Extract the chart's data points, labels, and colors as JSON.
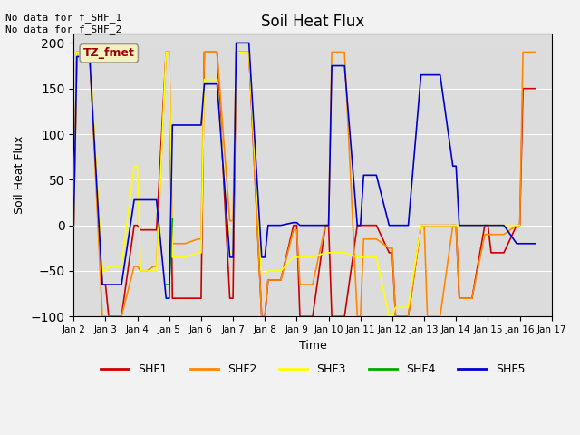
{
  "title": "Soil Heat Flux",
  "xlabel": "Time",
  "ylabel": "Soil Heat Flux",
  "annotation_text": "No data for f_SHF_1\nNo data for f_SHF_2",
  "legend_label_text": "TZ_fmet",
  "ylim": [
    -100,
    210
  ],
  "yticks": [
    -100,
    -50,
    0,
    50,
    100,
    150,
    200
  ],
  "fig_bg": "#f2f2f2",
  "ax_bg": "#dcdcdc",
  "series": {
    "SHF1": {
      "color": "#cc0000",
      "x": [
        2.0,
        2.1,
        2.5,
        2.9,
        3.0,
        3.1,
        3.5,
        3.9,
        4.0,
        4.1,
        4.3,
        4.5,
        4.6,
        4.9,
        5.0,
        5.1,
        5.5,
        5.9,
        6.0,
        6.1,
        6.5,
        6.9,
        7.0,
        7.1,
        7.5,
        7.9,
        8.0,
        8.1,
        8.5,
        8.9,
        9.0,
        9.1,
        9.5,
        9.9,
        10.0,
        10.1,
        10.5,
        10.9,
        11.0,
        11.1,
        11.5,
        11.9,
        12.0,
        12.1,
        12.5,
        12.9,
        13.0,
        13.1,
        13.5,
        13.9,
        14.0,
        14.1,
        14.5,
        14.9,
        15.0,
        15.1,
        15.5,
        15.9,
        16.0,
        16.1,
        16.5
      ],
      "y": [
        0,
        190,
        190,
        -65,
        -65,
        -100,
        -100,
        0,
        0,
        -5,
        -5,
        -5,
        -5,
        190,
        190,
        -80,
        -80,
        -80,
        -80,
        190,
        190,
        -80,
        -80,
        190,
        190,
        -100,
        -100,
        -60,
        -60,
        0,
        0,
        -100,
        -100,
        0,
        0,
        -100,
        -100,
        0,
        0,
        0,
        0,
        -30,
        -30,
        -100,
        -100,
        0,
        0,
        0,
        0,
        0,
        0,
        -80,
        -80,
        0,
        0,
        -30,
        -30,
        0,
        0,
        150,
        150
      ]
    },
    "SHF2": {
      "color": "#ff8800",
      "x": [
        2.0,
        2.1,
        2.5,
        2.9,
        3.0,
        3.1,
        3.5,
        3.9,
        4.0,
        4.1,
        4.3,
        4.5,
        4.6,
        4.9,
        5.0,
        5.1,
        5.5,
        5.9,
        6.0,
        6.1,
        6.5,
        6.9,
        7.0,
        7.1,
        7.5,
        7.9,
        8.0,
        8.1,
        8.5,
        8.9,
        9.0,
        9.1,
        9.5,
        9.9,
        10.0,
        10.1,
        10.5,
        10.9,
        11.0,
        11.1,
        11.5,
        11.9,
        12.0,
        12.1,
        12.5,
        12.9,
        13.0,
        13.1,
        13.5,
        13.9,
        14.0,
        14.1,
        14.5,
        14.9,
        15.0,
        15.1,
        15.5,
        15.9,
        16.0,
        16.1,
        16.5
      ],
      "y": [
        0,
        190,
        190,
        -100,
        -100,
        -100,
        -100,
        -45,
        -45,
        -50,
        -50,
        -45,
        -45,
        190,
        190,
        -20,
        -20,
        -15,
        -15,
        190,
        190,
        5,
        5,
        190,
        190,
        -100,
        -100,
        -60,
        -60,
        -5,
        -5,
        -65,
        -65,
        0,
        0,
        190,
        190,
        -100,
        -100,
        -15,
        -15,
        -25,
        -25,
        -100,
        -100,
        0,
        0,
        -100,
        -100,
        0,
        0,
        -80,
        -80,
        -10,
        -10,
        -10,
        -10,
        0,
        0,
        190,
        190
      ]
    },
    "SHF3": {
      "color": "#ffff00",
      "x": [
        2.0,
        2.1,
        2.5,
        2.9,
        3.0,
        3.1,
        3.5,
        3.9,
        4.0,
        4.1,
        4.3,
        4.5,
        4.6,
        4.9,
        5.0,
        5.1,
        5.5,
        5.9,
        6.0,
        6.1,
        6.5,
        6.9,
        7.0,
        7.1,
        7.5,
        7.9,
        8.0,
        8.1,
        8.5,
        8.9,
        9.0,
        9.1,
        9.5,
        9.9,
        10.0,
        10.1,
        10.5,
        10.9,
        11.0,
        11.1,
        11.5,
        11.9,
        12.0,
        12.1,
        12.5,
        12.9,
        13.0,
        13.1,
        13.5,
        13.9,
        14.0,
        14.1,
        14.5,
        14.9,
        15.0,
        15.1,
        15.5,
        15.9,
        16.0
      ],
      "y": [
        0,
        190,
        190,
        -50,
        -50,
        -45,
        -45,
        65,
        65,
        -50,
        -50,
        -50,
        -50,
        190,
        190,
        -35,
        -35,
        -30,
        -30,
        160,
        160,
        -30,
        -30,
        190,
        190,
        -55,
        -55,
        -50,
        -50,
        -35,
        -35,
        -35,
        -35,
        -30,
        -30,
        -30,
        -30,
        -35,
        -35,
        -35,
        -35,
        -100,
        -100,
        -90,
        -90,
        0,
        0,
        0,
        0,
        0,
        0,
        0,
        0,
        0,
        0,
        0,
        0,
        0,
        0
      ]
    },
    "SHF4": {
      "color": "#00aa00",
      "x": [
        4.9,
        5.0,
        5.1
      ],
      "y": [
        -65,
        -65,
        7
      ]
    },
    "SHF5": {
      "color": "#0000cc",
      "x": [
        2.0,
        2.1,
        2.5,
        2.9,
        3.0,
        3.1,
        3.5,
        3.9,
        4.0,
        4.1,
        4.3,
        4.5,
        4.6,
        4.9,
        5.0,
        5.1,
        5.5,
        5.9,
        6.0,
        6.1,
        6.5,
        6.9,
        7.0,
        7.1,
        7.5,
        7.9,
        8.0,
        8.1,
        8.5,
        8.9,
        9.0,
        9.1,
        9.5,
        9.9,
        10.0,
        10.1,
        10.5,
        10.9,
        11.0,
        11.1,
        11.5,
        11.9,
        12.0,
        12.1,
        12.5,
        12.9,
        13.0,
        13.1,
        13.5,
        13.9,
        14.0,
        14.1,
        14.5,
        14.9,
        15.0,
        15.1,
        15.5,
        15.9,
        16.0,
        16.1,
        16.5
      ],
      "y": [
        0,
        185,
        185,
        -65,
        -65,
        -65,
        -65,
        28,
        28,
        28,
        28,
        28,
        28,
        -80,
        -80,
        110,
        110,
        110,
        110,
        155,
        155,
        -35,
        -35,
        200,
        200,
        -35,
        -35,
        0,
        0,
        3,
        3,
        0,
        0,
        0,
        0,
        175,
        175,
        0,
        0,
        55,
        55,
        0,
        0,
        0,
        0,
        165,
        165,
        165,
        165,
        65,
        65,
        0,
        0,
        0,
        0,
        0,
        0,
        -20,
        -20,
        -20,
        -20
      ]
    }
  },
  "xtick_positions": [
    2,
    3,
    4,
    5,
    6,
    7,
    8,
    9,
    10,
    11,
    12,
    13,
    14,
    15,
    16,
    17
  ],
  "xtick_labels": [
    "Jan 2",
    "Jan 3",
    "Jan 4",
    "Jan 5",
    "Jan 6",
    "Jan 7",
    "Jan 8",
    "Jan 9",
    "Jan 10",
    "Jan 11",
    "Jan 12",
    "Jan 13",
    "Jan 14",
    "Jan 15",
    "Jan 16",
    "Jan 17"
  ]
}
